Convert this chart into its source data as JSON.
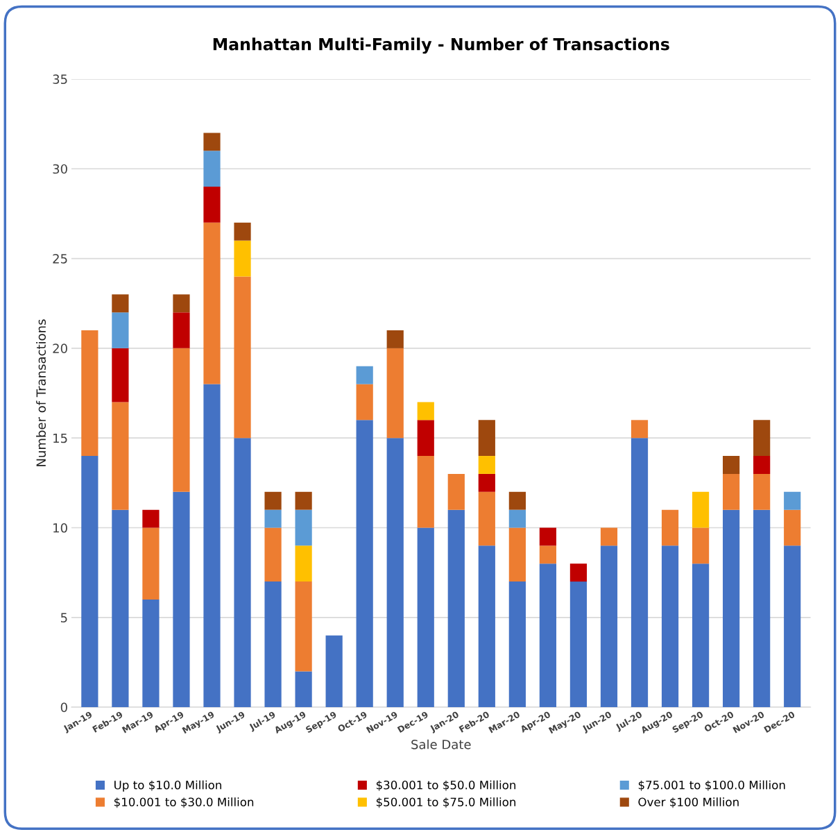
{
  "chart_data": {
    "type": "bar",
    "stacked": true,
    "title": "Manhattan Multi-Family - Number of Transactions",
    "xlabel": "Sale Date",
    "ylabel": "Number of Transactions",
    "categories": [
      "Jan-19",
      "Feb-19",
      "Mar-19",
      "Apr-19",
      "May-19",
      "Jun-19",
      "Jul-19",
      "Aug-19",
      "Sep-19",
      "Oct-19",
      "Nov-19",
      "Dec-19",
      "Jan-20",
      "Feb-20",
      "Mar-20",
      "Apr-20",
      "May-20",
      "Jun-20",
      "Jul-20",
      "Aug-20",
      "Sep-20",
      "Oct-20",
      "Nov-20",
      "Dec-20"
    ],
    "series": [
      {
        "name": "Up to $10.0 Million",
        "color": "#4472c4",
        "values": [
          14,
          11,
          6,
          12,
          18,
          15,
          7,
          2,
          4,
          16,
          15,
          10,
          11,
          9,
          7,
          8,
          7,
          9,
          15,
          9,
          8,
          11,
          11,
          9
        ]
      },
      {
        "name": "$10.001 to $30.0 Million",
        "color": "#ed7d31",
        "values": [
          7,
          6,
          4,
          8,
          9,
          9,
          3,
          5,
          0,
          2,
          5,
          4,
          2,
          3,
          3,
          1,
          0,
          1,
          1,
          2,
          2,
          2,
          2,
          2
        ]
      },
      {
        "name": "$30.001 to $50.0 Million",
        "color": "#c00000",
        "values": [
          0,
          3,
          1,
          2,
          2,
          0,
          0,
          0,
          0,
          0,
          0,
          2,
          0,
          1,
          0,
          1,
          1,
          0,
          0,
          0,
          0,
          0,
          1,
          0
        ]
      },
      {
        "name": "$50.001 to $75.0 Million",
        "color": "#ffc000",
        "values": [
          0,
          0,
          0,
          0,
          0,
          2,
          0,
          2,
          0,
          0,
          0,
          1,
          0,
          1,
          0,
          0,
          0,
          0,
          0,
          0,
          2,
          0,
          0,
          0
        ]
      },
      {
        "name": "$75.001 to $100.0 Million",
        "color": "#5b9bd5",
        "values": [
          0,
          2,
          0,
          0,
          2,
          0,
          1,
          2,
          0,
          1,
          0,
          0,
          0,
          0,
          1,
          0,
          0,
          0,
          0,
          0,
          0,
          0,
          0,
          1
        ]
      },
      {
        "name": "Over $100 Million",
        "color": "#9e480e",
        "values": [
          0,
          1,
          0,
          1,
          1,
          1,
          1,
          1,
          0,
          0,
          1,
          0,
          0,
          2,
          1,
          0,
          0,
          0,
          0,
          0,
          0,
          1,
          2,
          0
        ]
      }
    ],
    "ylim": [
      0,
      35
    ],
    "yticks": [
      0,
      5,
      10,
      15,
      20,
      25,
      30,
      35
    ],
    "grid": "y",
    "legend": "bottom"
  }
}
